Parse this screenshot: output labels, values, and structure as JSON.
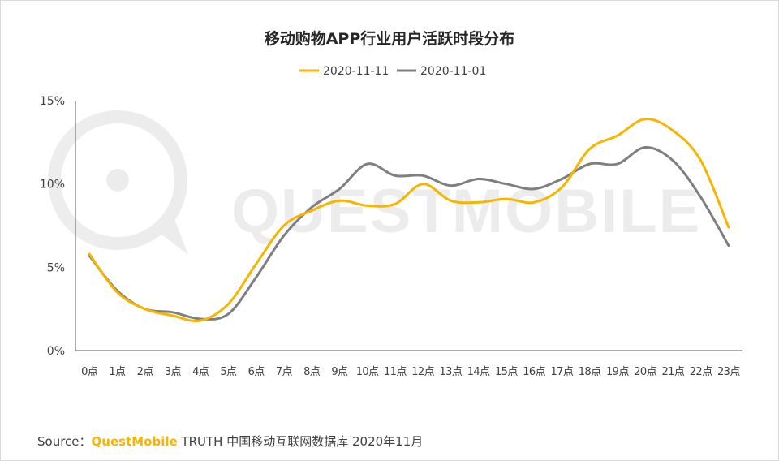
{
  "chart_data": {
    "type": "line",
    "title": "移动购物APP行业用户活跃时段分布",
    "categories": [
      "0点",
      "1点",
      "2点",
      "3点",
      "4点",
      "5点",
      "6点",
      "7点",
      "8点",
      "9点",
      "10点",
      "11点",
      "12点",
      "13点",
      "14点",
      "15点",
      "16点",
      "17点",
      "18点",
      "19点",
      "20点",
      "21点",
      "22点",
      "23点"
    ],
    "series": [
      {
        "name": "2020-11-11",
        "color": "#f7b500",
        "values": [
          5.8,
          3.5,
          2.5,
          2.1,
          1.8,
          2.8,
          5.2,
          7.5,
          8.4,
          9.0,
          8.7,
          8.8,
          10.0,
          9.0,
          8.9,
          9.1,
          8.9,
          9.8,
          12.1,
          12.9,
          13.9,
          13.2,
          11.4,
          7.4
        ]
      },
      {
        "name": "2020-11-01",
        "color": "#7f7f7f",
        "values": [
          5.7,
          3.6,
          2.5,
          2.3,
          1.9,
          2.2,
          4.4,
          6.9,
          8.6,
          9.7,
          11.2,
          10.5,
          10.5,
          9.9,
          10.3,
          10.0,
          9.7,
          10.3,
          11.2,
          11.2,
          12.2,
          11.4,
          9.2,
          6.3
        ]
      }
    ],
    "yticks": [
      "15%",
      "10%",
      "5%",
      "0%"
    ],
    "ylim": [
      0,
      15
    ],
    "legend_position": "top-center",
    "grid": false
  },
  "watermark": "QUESTMOBILE",
  "source": {
    "prefix": "Source：",
    "brand": "QuestMobile",
    "rest": " TRUTH 中国移动互联网数据库 2020年11月"
  }
}
